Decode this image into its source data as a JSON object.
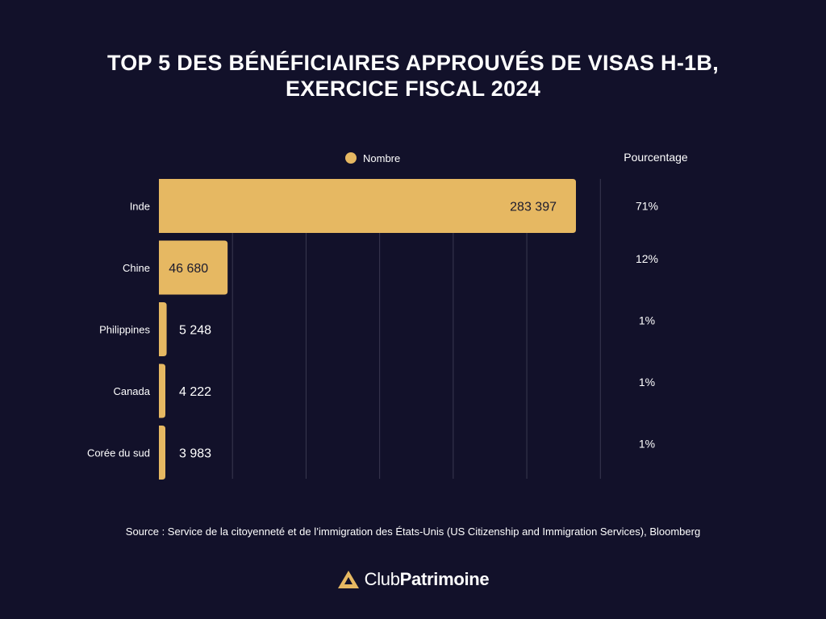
{
  "title_line1": "TOP 5 DES BÉNÉFICIAIRES APPROUVÉS DE VISAS H-1B,",
  "title_line2": "EXERCICE FISCAL 2024",
  "legend_label": "Nombre",
  "percent_header": "Pourcentage",
  "source": "Source : Service de la citoyenneté et de l’immigration des États-Unis (US Citizenship and Immigration Services), Bloomberg",
  "brand": {
    "light": "Club",
    "bold": "Patrimoine"
  },
  "colors": {
    "background": "#12112a",
    "bar": "#e6b862",
    "grid": "#3a3950",
    "text": "#ffffff",
    "bar_label": "#1a1a2e"
  },
  "chart_data": {
    "type": "bar",
    "orientation": "horizontal",
    "categories": [
      "Inde",
      "Chine",
      "Philippines",
      "Canada",
      "Corée du sud"
    ],
    "series": [
      {
        "name": "Nombre",
        "values": [
          283397,
          46680,
          5248,
          4222,
          3983
        ]
      }
    ],
    "value_labels": [
      "283 397",
      "46 680",
      "5 248",
      "4 222",
      "3 983"
    ],
    "percentages": [
      "71%",
      "12%",
      "1%",
      "1%",
      "1%"
    ],
    "xlim": [
      0,
      300000
    ],
    "grid": true,
    "legend_position": "top"
  }
}
